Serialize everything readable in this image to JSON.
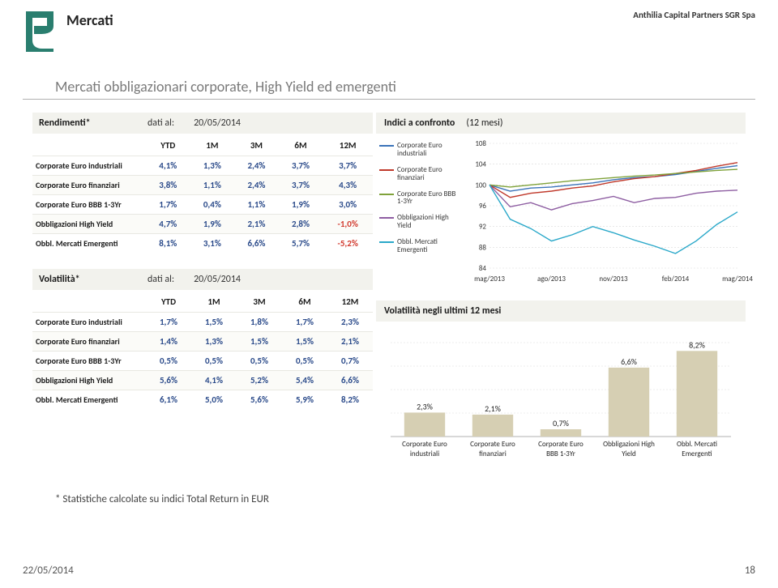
{
  "header": {
    "page_title": "Mercati",
    "company": "Anthilia Capital Partners SGR Spa",
    "logo_colors": {
      "top": "#2a7e6f",
      "bottom": "#2a7e6f"
    }
  },
  "subtitle": "Mercati obbligazionari corporate, High Yield ed emergenti",
  "rendimenti": {
    "metric_label": "Rendimenti*",
    "asof_label": "dati al:",
    "asof_date": "20/05/2014",
    "columns": [
      "YTD",
      "1M",
      "3M",
      "6M",
      "12M"
    ],
    "rows": [
      {
        "label": "Corporate Euro industriali",
        "vals": [
          "4,1%",
          "1,3%",
          "2,4%",
          "3,7%",
          "3,7%"
        ],
        "neg": [
          false,
          false,
          false,
          false,
          false
        ]
      },
      {
        "label": "Corporate Euro finanziari",
        "vals": [
          "3,8%",
          "1,1%",
          "2,4%",
          "3,7%",
          "4,3%"
        ],
        "neg": [
          false,
          false,
          false,
          false,
          false
        ]
      },
      {
        "label": "Corporate Euro BBB 1-3Yr",
        "vals": [
          "1,7%",
          "0,4%",
          "1,1%",
          "1,9%",
          "3,0%"
        ],
        "neg": [
          false,
          false,
          false,
          false,
          false
        ]
      },
      {
        "label": "Obbligazioni High Yield",
        "vals": [
          "4,7%",
          "1,9%",
          "2,1%",
          "2,8%",
          "-1,0%"
        ],
        "neg": [
          false,
          false,
          false,
          false,
          true
        ]
      },
      {
        "label": "Obbl. Mercati Emergenti",
        "vals": [
          "8,1%",
          "3,1%",
          "6,6%",
          "5,7%",
          "-5,2%"
        ],
        "neg": [
          false,
          false,
          false,
          false,
          true
        ]
      }
    ]
  },
  "volatilita": {
    "metric_label": "Volatilità*",
    "asof_label": "dati al:",
    "asof_date": "20/05/2014",
    "columns": [
      "YTD",
      "1M",
      "3M",
      "6M",
      "12M"
    ],
    "rows": [
      {
        "label": "Corporate Euro industriali",
        "vals": [
          "1,7%",
          "1,5%",
          "1,8%",
          "1,7%",
          "2,3%"
        ],
        "neg": [
          false,
          false,
          false,
          false,
          false
        ]
      },
      {
        "label": "Corporate Euro finanziari",
        "vals": [
          "1,4%",
          "1,3%",
          "1,5%",
          "1,5%",
          "2,1%"
        ],
        "neg": [
          false,
          false,
          false,
          false,
          false
        ]
      },
      {
        "label": "Corporate Euro BBB 1-3Yr",
        "vals": [
          "0,5%",
          "0,5%",
          "0,5%",
          "0,5%",
          "0,7%"
        ],
        "neg": [
          false,
          false,
          false,
          false,
          false
        ]
      },
      {
        "label": "Obbligazioni High Yield",
        "vals": [
          "5,6%",
          "4,1%",
          "5,2%",
          "5,4%",
          "6,6%"
        ],
        "neg": [
          false,
          false,
          false,
          false,
          false
        ]
      },
      {
        "label": "Obbl. Mercati Emergenti",
        "vals": [
          "6,1%",
          "5,0%",
          "5,6%",
          "5,9%",
          "8,2%"
        ],
        "neg": [
          false,
          false,
          false,
          false,
          false
        ]
      }
    ]
  },
  "line_chart": {
    "title": "Indici a confronto",
    "subtitle": "(12 mesi)",
    "ylim": [
      84,
      108
    ],
    "ytick_step": 4,
    "x_labels": [
      "mag/2013",
      "ago/2013",
      "nov/2013",
      "feb/2014",
      "mag/2014"
    ],
    "grid_color": "#d9d9d9",
    "series": [
      {
        "name": "Corporate Euro industriali",
        "color": "#3b73b9",
        "points": [
          100,
          98.8,
          99.4,
          99.6,
          100.0,
          100.4,
          101.0,
          101.4,
          101.6,
          102.0,
          102.6,
          103.2,
          103.7
        ]
      },
      {
        "name": "Corporate Euro finanziari",
        "color": "#c0392b",
        "points": [
          100,
          97.6,
          98.4,
          98.8,
          99.4,
          99.8,
          100.6,
          101.2,
          101.6,
          102.2,
          102.8,
          103.6,
          104.3
        ]
      },
      {
        "name": "Corporate Euro BBB 1-3Yr",
        "color": "#7fa23a",
        "points": [
          100,
          99.6,
          100.0,
          100.4,
          100.8,
          101.1,
          101.4,
          101.7,
          101.9,
          102.2,
          102.5,
          102.8,
          103.0
        ]
      },
      {
        "name": "Obbligazioni High Yield",
        "color": "#8e5ea2",
        "points": [
          100,
          95.8,
          96.6,
          95.2,
          96.4,
          97.0,
          97.8,
          96.6,
          97.4,
          97.6,
          98.4,
          98.8,
          99.0
        ]
      },
      {
        "name": "Obbl. Mercati Emergenti",
        "color": "#2aa8c9",
        "points": [
          100,
          93.4,
          91.6,
          89.2,
          90.4,
          92.0,
          90.8,
          89.4,
          88.2,
          86.8,
          89.2,
          92.4,
          94.8
        ]
      }
    ]
  },
  "bar_chart": {
    "title": "Volatilità negli ultimi 12 mesi",
    "ymax": 9,
    "bar_color": "#d6cfb3",
    "grid_color": "#d9d9d9",
    "bars": [
      {
        "label": "Corporate Euro industriali",
        "value": 2.3,
        "display": "2,3%"
      },
      {
        "label": "Corporate Euro finanziari",
        "value": 2.1,
        "display": "2,1%"
      },
      {
        "label": "Corporate Euro BBB 1-3Yr",
        "value": 0.7,
        "display": "0,7%"
      },
      {
        "label": "Obbligazioni High Yield",
        "value": 6.6,
        "display": "6,6%"
      },
      {
        "label": "Obbl. Mercati Emergenti",
        "value": 8.2,
        "display": "8,2%"
      }
    ]
  },
  "footnote": "* Statistiche calcolate su indici Total Return in EUR",
  "footer": {
    "date": "22/05/2014",
    "page": "18"
  }
}
